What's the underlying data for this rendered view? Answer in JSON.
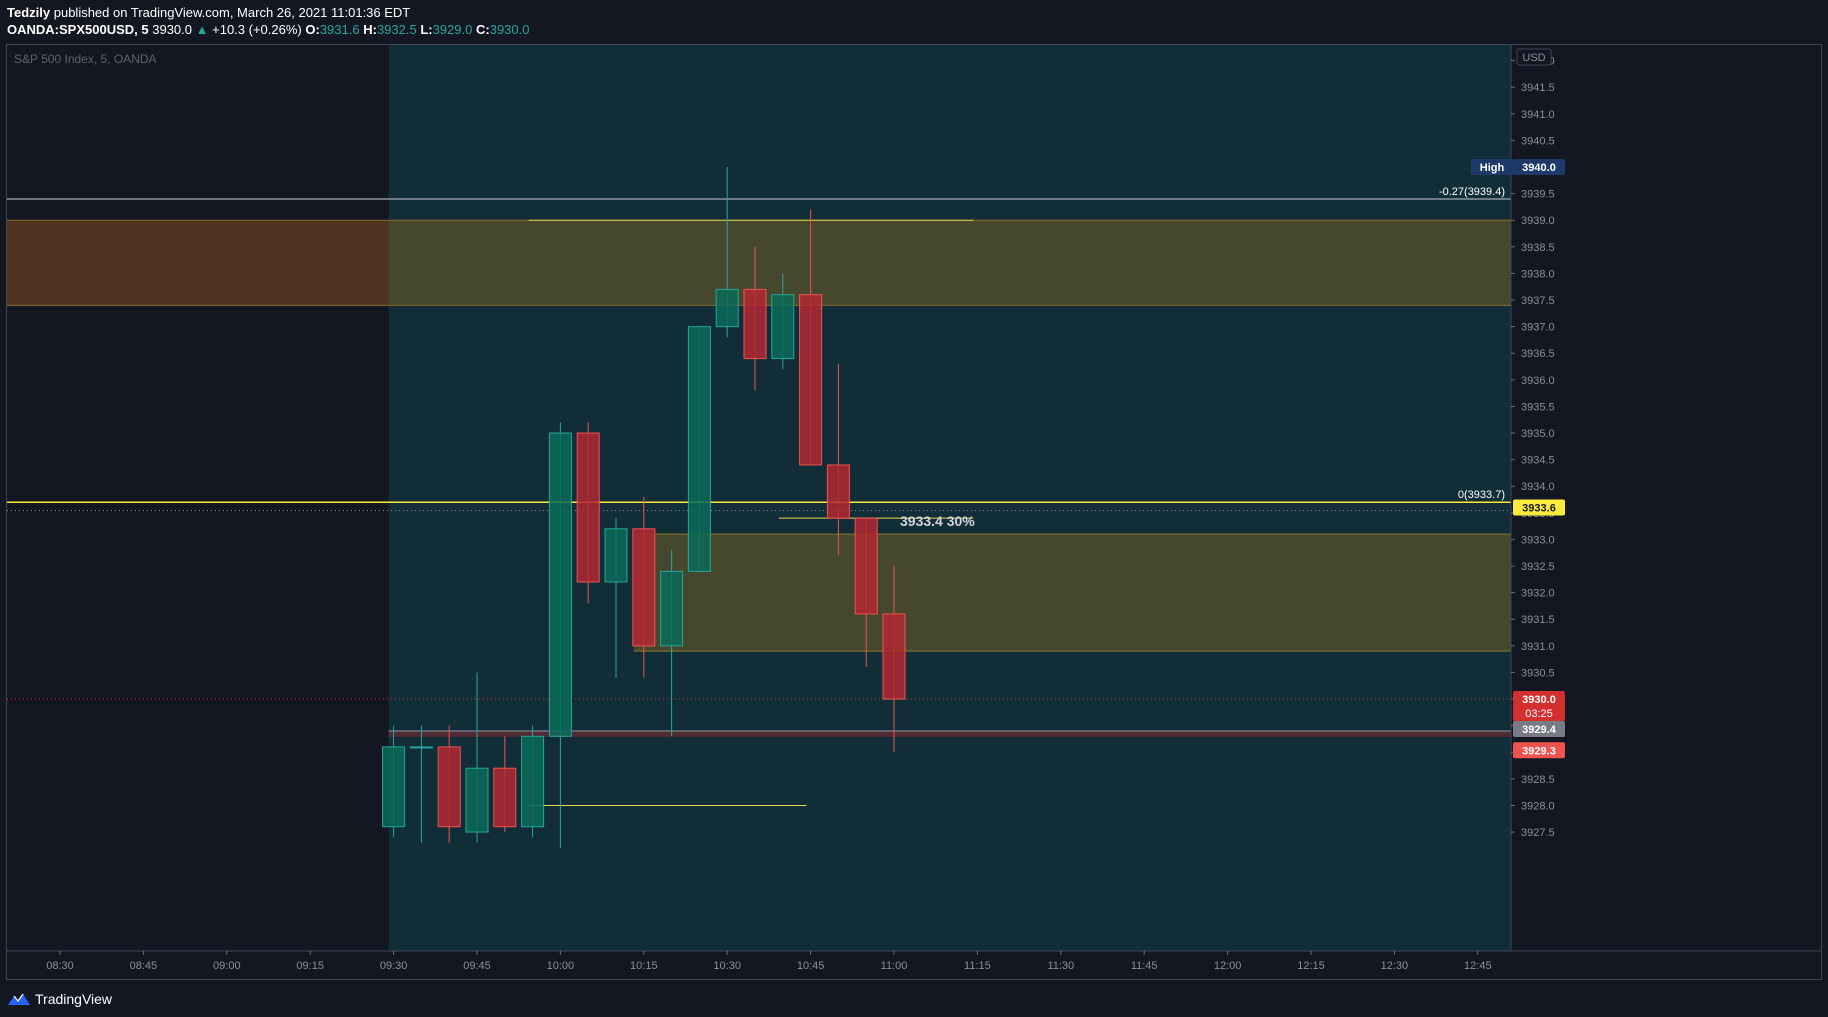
{
  "header": {
    "author": "Tedzily",
    "published": "published on TradingView.com, March 26, 2021 11:01:36 EDT",
    "symbol": "OANDA:SPX500USD, 5",
    "price": "3930.0",
    "arrow": "▲",
    "change": "+10.3 (+0.26%)",
    "o_label": "O:",
    "o_value": "3931.6",
    "h_label": "H:",
    "h_value": "3932.5",
    "l_label": "L:",
    "l_value": "3929.0",
    "c_label": "C:",
    "c_value": "3930.0"
  },
  "footer": {
    "brand": "TradingView"
  },
  "colors": {
    "background": "#131722",
    "session_bg": "#102d38",
    "up": "#0b6b58",
    "down": "#b22833",
    "zone": "#4a4a2c",
    "zone_pre": "#5a3a22",
    "yellow": "#ffeb3b",
    "high_badge": "#1e3a6b",
    "last_badge": "#d32f2f"
  },
  "chart_data": {
    "type": "candlestick",
    "title": "S&P 500 Index, 5, OANDA",
    "currency": "USD",
    "x_ticks": [
      "08:30",
      "08:45",
      "09:00",
      "09:15",
      "09:30",
      "09:45",
      "10:00",
      "10:15",
      "10:30",
      "10:45",
      "11:00",
      "11:15",
      "11:30",
      "11:45",
      "12:00",
      "12:15",
      "12:30",
      "12:45"
    ],
    "y_ticks": [
      "3927.5",
      "3928.0",
      "3928.5",
      "3929.0",
      "3929.5",
      "3930.0",
      "3930.5",
      "3931.0",
      "3931.5",
      "3932.0",
      "3932.5",
      "3933.0",
      "3933.5",
      "3934.0",
      "3934.5",
      "3935.0",
      "3935.5",
      "3936.0",
      "3936.5",
      "3937.0",
      "3937.5",
      "3938.0",
      "3938.5",
      "3939.0",
      "3939.5",
      "3940.0",
      "3940.5",
      "3941.0",
      "3941.5",
      "3942.0"
    ],
    "ylim": [
      3927.5,
      3942.2
    ],
    "session_start": "09:30",
    "candles": [
      {
        "t": "09:30",
        "o": 3927.6,
        "h": 3929.5,
        "l": 3927.4,
        "c": 3929.1
      },
      {
        "t": "09:35",
        "o": 3929.1,
        "h": 3929.5,
        "l": 3927.3,
        "c": 3929.1
      },
      {
        "t": "09:40",
        "o": 3929.1,
        "h": 3929.5,
        "l": 3927.3,
        "c": 3927.6
      },
      {
        "t": "09:45",
        "o": 3927.5,
        "h": 3930.5,
        "l": 3927.3,
        "c": 3928.7
      },
      {
        "t": "09:50",
        "o": 3928.7,
        "h": 3929.3,
        "l": 3927.5,
        "c": 3927.6
      },
      {
        "t": "09:55",
        "o": 3927.6,
        "h": 3929.5,
        "l": 3927.4,
        "c": 3929.3
      },
      {
        "t": "10:00",
        "o": 3929.3,
        "h": 3935.2,
        "l": 3927.2,
        "c": 3935.0
      },
      {
        "t": "10:05",
        "o": 3935.0,
        "h": 3935.2,
        "l": 3931.8,
        "c": 3932.2
      },
      {
        "t": "10:10",
        "o": 3932.2,
        "h": 3933.4,
        "l": 3930.4,
        "c": 3933.2
      },
      {
        "t": "10:15",
        "o": 3933.2,
        "h": 3933.8,
        "l": 3930.4,
        "c": 3931.0
      },
      {
        "t": "10:20",
        "o": 3931.0,
        "h": 3932.8,
        "l": 3929.3,
        "c": 3932.4
      },
      {
        "t": "10:25",
        "o": 3932.4,
        "h": 3937.0,
        "l": 3932.4,
        "c": 3937.0
      },
      {
        "t": "10:30",
        "o": 3937.0,
        "h": 3940.0,
        "l": 3936.8,
        "c": 3937.7
      },
      {
        "t": "10:35",
        "o": 3937.7,
        "h": 3938.5,
        "l": 3935.8,
        "c": 3936.4
      },
      {
        "t": "10:40",
        "o": 3936.4,
        "h": 3938.0,
        "l": 3936.2,
        "c": 3937.6
      },
      {
        "t": "10:45",
        "o": 3937.6,
        "h": 3939.2,
        "l": 3934.4,
        "c": 3934.4
      },
      {
        "t": "10:50",
        "o": 3934.4,
        "h": 3936.3,
        "l": 3932.7,
        "c": 3933.4
      },
      {
        "t": "10:55",
        "o": 3933.4,
        "h": 3933.4,
        "l": 3930.6,
        "c": 3931.6
      },
      {
        "t": "11:00",
        "o": 3931.6,
        "h": 3932.5,
        "l": 3929.0,
        "c": 3930.0
      }
    ],
    "zones": [
      {
        "from": 3937.4,
        "to": 3939.0
      },
      {
        "from": 3930.9,
        "to": 3933.1
      }
    ],
    "fib_levels": [
      {
        "label": "-0.27(3939.4)",
        "value": 3939.4
      },
      {
        "label": "0(3933.7)",
        "value": 3933.7
      }
    ],
    "annotation": "3933.4 30%",
    "price_badges": [
      {
        "label": "High",
        "value": "3940.0"
      },
      {
        "label": "",
        "value": "3933.6"
      },
      {
        "label": "",
        "value": "3930.0",
        "sub": "03:25"
      },
      {
        "label": "",
        "value": "3929.4"
      },
      {
        "label": "",
        "value": "3929.3"
      }
    ],
    "lines": [
      {
        "value": 3939.0,
        "from": "09:55",
        "to": "11:15"
      },
      {
        "value": 3933.4,
        "from": "10:40",
        "to": "11:15"
      },
      {
        "value": 3928.0,
        "from": "09:55",
        "to": "10:45"
      }
    ]
  }
}
